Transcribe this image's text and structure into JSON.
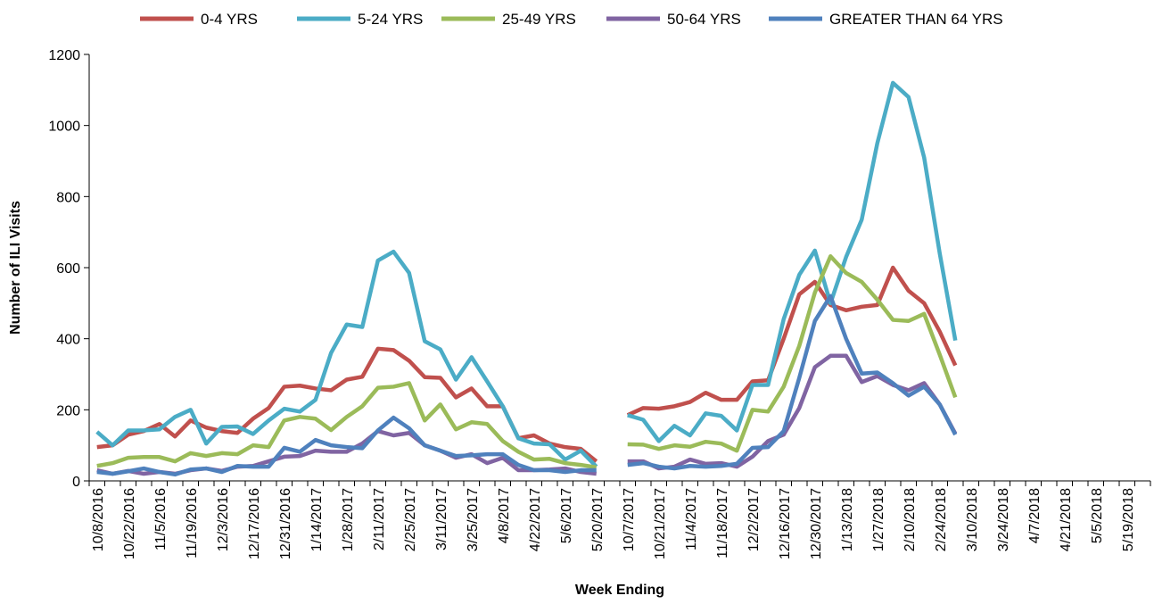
{
  "chart_data": {
    "type": "line",
    "x_label": "Week Ending",
    "y_label": "Number of ILI Visits",
    "ylim": [
      0,
      1200
    ],
    "yticks": [
      0,
      200,
      400,
      600,
      800,
      1000,
      1200
    ],
    "grid": false,
    "legend": "top",
    "categories": [
      "10/8/2016",
      null,
      "10/22/2016",
      null,
      "11/5/2016",
      null,
      "11/19/2016",
      null,
      "12/3/2016",
      null,
      "12/17/2016",
      null,
      "12/31/2016",
      null,
      "1/14/2017",
      null,
      "1/28/2017",
      null,
      "2/11/2017",
      null,
      "2/25/2017",
      null,
      "3/11/2017",
      null,
      "3/25/2017",
      null,
      "4/8/2017",
      null,
      "4/22/2017",
      null,
      "5/6/2017",
      null,
      "5/20/2017",
      null,
      "10/7/2017",
      null,
      "10/21/2017",
      null,
      "11/4/2017",
      null,
      "11/18/2017",
      null,
      "12/2/2017",
      null,
      "12/16/2017",
      null,
      "12/30/2017",
      null,
      "1/13/2018",
      null,
      "1/27/2018",
      null,
      "2/10/2018",
      null,
      "2/24/2018",
      null,
      "3/10/2018",
      null,
      "3/24/2018",
      null,
      "4/7/2018",
      null,
      "4/21/2018",
      null,
      "5/5/2018",
      null,
      "5/19/2018",
      null
    ],
    "series": [
      {
        "name": "0-4 YRS",
        "color": "#c0504d",
        "values": [
          95,
          100,
          130,
          140,
          160,
          125,
          170,
          150,
          140,
          135,
          175,
          205,
          265,
          268,
          260,
          255,
          285,
          293,
          372,
          368,
          338,
          292,
          290,
          235,
          260,
          210,
          210,
          120,
          128,
          105,
          95,
          90,
          55,
          null,
          185,
          205,
          203,
          210,
          222,
          248,
          228,
          228,
          280,
          283,
          400,
          525,
          560,
          495,
          480,
          490,
          495,
          600,
          535,
          500,
          420,
          325,
          null,
          null,
          null,
          null,
          null,
          null,
          null,
          null,
          null,
          null,
          null,
          null
        ]
      },
      {
        "name": "5-24 YRS",
        "color": "#4bacc6",
        "values": [
          138,
          100,
          142,
          142,
          145,
          180,
          200,
          105,
          152,
          153,
          132,
          170,
          203,
          195,
          228,
          360,
          440,
          433,
          620,
          645,
          585,
          393,
          370,
          285,
          348,
          280,
          210,
          120,
          105,
          103,
          60,
          85,
          40,
          null,
          185,
          172,
          112,
          155,
          128,
          190,
          183,
          142,
          270,
          270,
          455,
          580,
          648,
          500,
          630,
          735,
          950,
          1120,
          1080,
          910,
          640,
          395,
          null,
          null,
          null,
          null,
          null,
          null,
          null,
          null,
          null,
          null,
          null,
          null
        ]
      },
      {
        "name": "25-49 YRS",
        "color": "#9bbb59",
        "values": [
          42,
          50,
          65,
          67,
          67,
          55,
          78,
          70,
          78,
          75,
          100,
          95,
          170,
          180,
          175,
          143,
          180,
          210,
          262,
          265,
          275,
          170,
          215,
          145,
          165,
          160,
          112,
          82,
          60,
          62,
          50,
          45,
          38,
          null,
          103,
          102,
          90,
          100,
          96,
          110,
          105,
          85,
          200,
          195,
          265,
          380,
          530,
          632,
          585,
          560,
          510,
          453,
          450,
          470,
          355,
          235,
          null,
          null,
          null,
          null,
          null,
          null,
          null,
          null,
          null,
          null,
          null,
          null
        ]
      },
      {
        "name": "50-64 YRS",
        "color": "#8064a2",
        "values": [
          30,
          20,
          28,
          20,
          25,
          20,
          30,
          35,
          28,
          40,
          42,
          55,
          68,
          70,
          85,
          82,
          82,
          105,
          140,
          128,
          135,
          100,
          85,
          65,
          75,
          50,
          65,
          30,
          30,
          32,
          35,
          25,
          20,
          null,
          55,
          55,
          35,
          40,
          60,
          48,
          50,
          40,
          68,
          112,
          130,
          205,
          320,
          352,
          352,
          278,
          295,
          270,
          255,
          275,
          215,
          133,
          null,
          null,
          null,
          null,
          null,
          null,
          null,
          null,
          null,
          null,
          null,
          null
        ]
      },
      {
        "name": "GREATER THAN 64 YRS",
        "color": "#4f81bd",
        "values": [
          25,
          20,
          27,
          35,
          25,
          18,
          32,
          35,
          25,
          42,
          40,
          40,
          93,
          82,
          115,
          100,
          95,
          92,
          142,
          178,
          148,
          100,
          85,
          70,
          72,
          75,
          75,
          45,
          30,
          30,
          25,
          30,
          30,
          null,
          45,
          50,
          40,
          35,
          42,
          40,
          42,
          48,
          93,
          95,
          140,
          290,
          450,
          520,
          400,
          302,
          305,
          275,
          240,
          265,
          215,
          130,
          null,
          null,
          null,
          null,
          null,
          null,
          null,
          null,
          null,
          null,
          null,
          null
        ]
      }
    ]
  }
}
